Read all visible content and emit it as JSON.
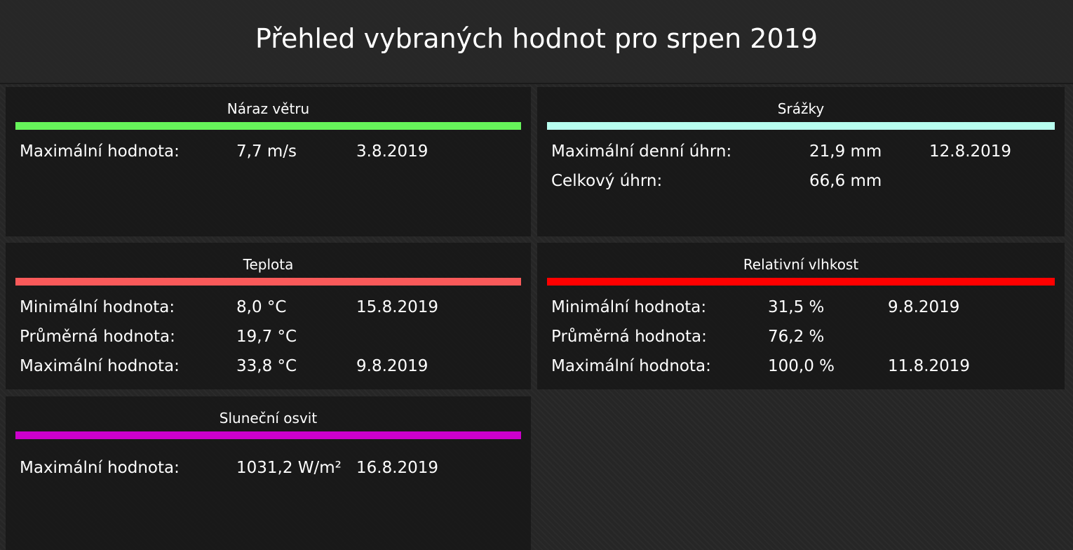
{
  "header": {
    "title": "Přehled vybraných hodnot pro srpen 2019"
  },
  "panels": [
    {
      "title": "Náraz větru",
      "color": "#66f45a",
      "rows": [
        {
          "label": "Maximální hodnota:",
          "value": "7,7 m/s",
          "date": "3.8.2019"
        }
      ]
    },
    {
      "title": "Srážky",
      "color": "#b8fff0",
      "rows": [
        {
          "label": "Maximální denní úhrn:",
          "value": "21,9 mm",
          "date": "12.8.2019"
        },
        {
          "label": "Celkový úhrn:",
          "value": "66,6 mm"
        }
      ]
    },
    {
      "title": "Teplota",
      "color": "#fa5a5a",
      "rows": [
        {
          "label": "Minimální hodnota:",
          "value": "8,0 °C",
          "date": "15.8.2019"
        },
        {
          "label": "Průměrná hodnota:",
          "value": "19,7 °C"
        },
        {
          "label": "Maximální hodnota:",
          "value": "33,8 °C",
          "date": "9.8.2019"
        }
      ]
    },
    {
      "title": "Relativní vlhkost",
      "color": "#ff0000",
      "rows": [
        {
          "label": "Minimální hodnota:",
          "value": "31,5 %",
          "date": "9.8.2019"
        },
        {
          "label": "Průměrná hodnota:",
          "value": "76,2 %"
        },
        {
          "label": "Maximální hodnota:",
          "value": "100,0 %",
          "date": "11.8.2019"
        }
      ]
    },
    {
      "title": "Sluneční osvit",
      "color": "#cc00cc",
      "rows": [
        {
          "label": "Maximální hodnota:",
          "value": "1031,2 W/m²",
          "date": "16.8.2019"
        }
      ]
    }
  ]
}
